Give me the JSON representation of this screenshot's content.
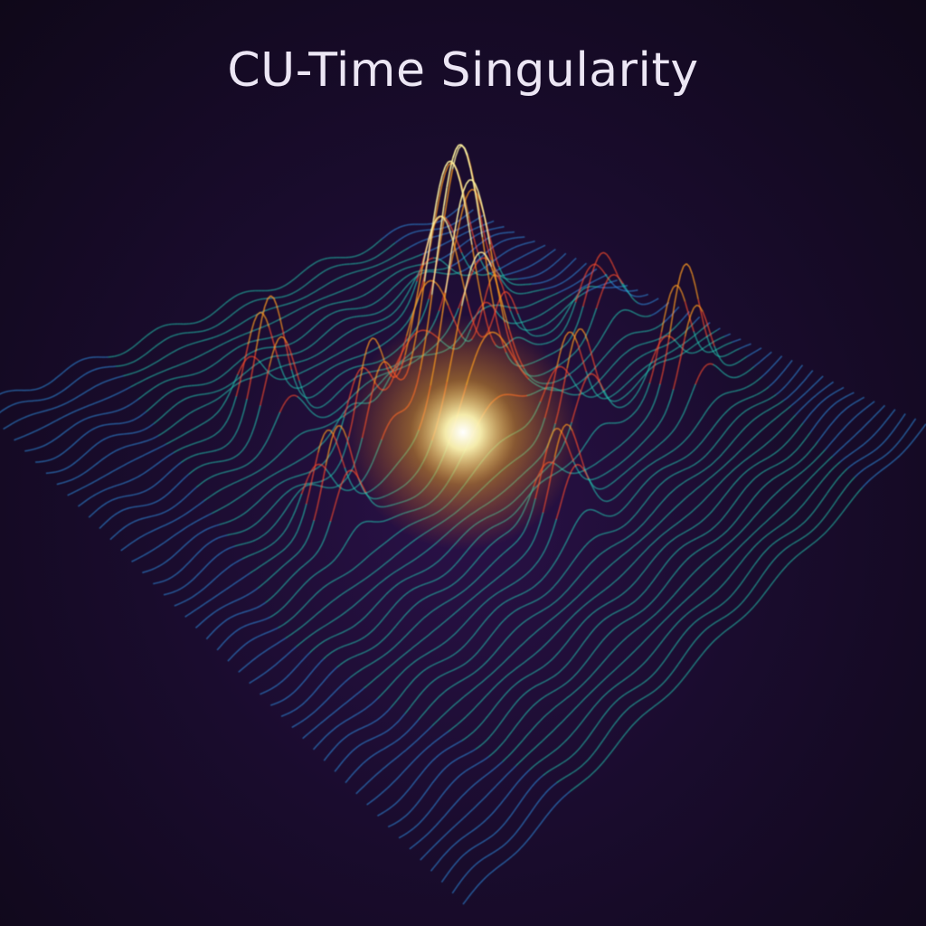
{
  "title": "CU-Time Singularity",
  "palette": {
    "background": "#140a22",
    "low": "#7b2fe0",
    "mid_low": "#2f8fe6",
    "mid": "#21c7b0",
    "mid_high": "#ff4b2b",
    "high": "#ff9a1f",
    "peak": "#fff3a0"
  }
}
